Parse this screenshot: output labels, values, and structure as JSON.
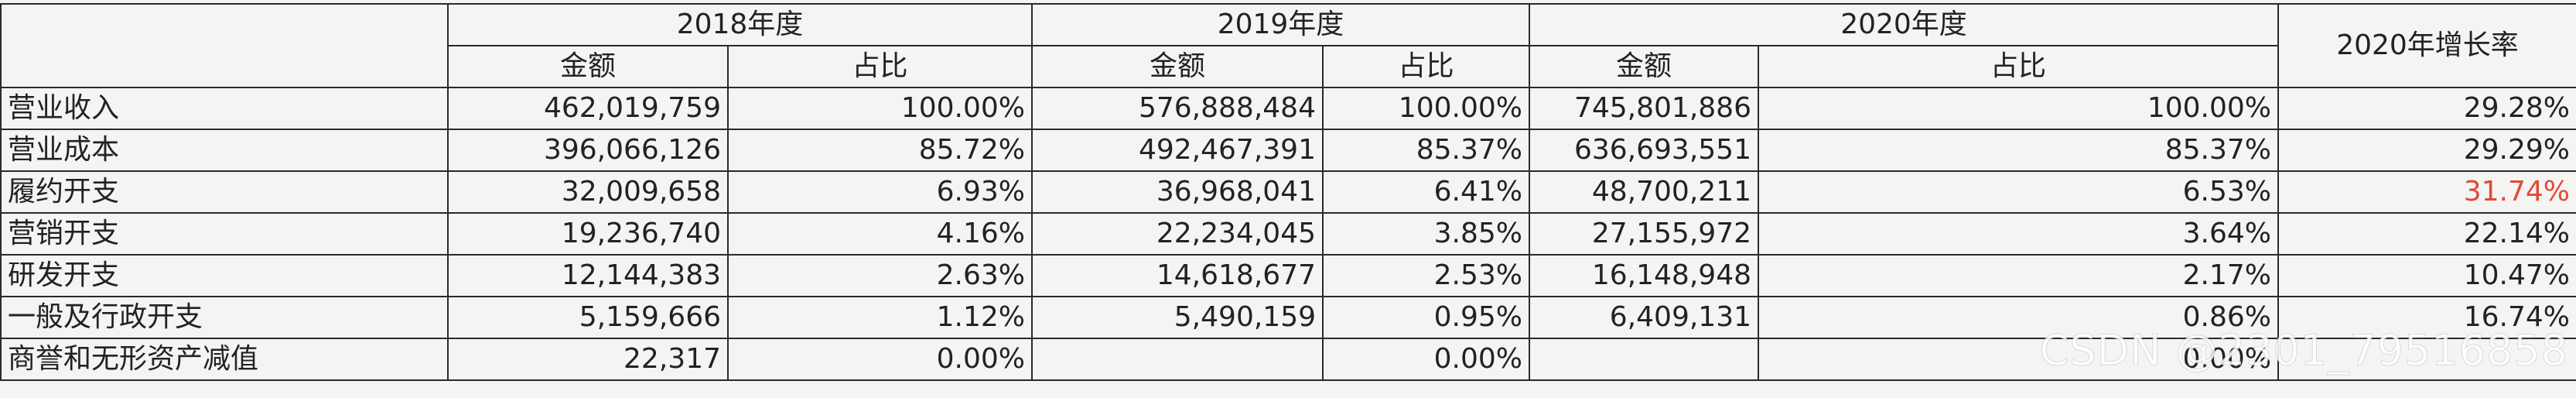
{
  "header": {
    "years": [
      "2018年度",
      "2019年度",
      "2020年度"
    ],
    "growth": "2020年增长率",
    "amount": "金额",
    "ratio": "占比"
  },
  "rows": [
    {
      "label": "营业收入",
      "a2018": "462,019,759",
      "r2018": "100.00%",
      "a2019": "576,888,484",
      "r2019": "100.00%",
      "a2020": "745,801,886",
      "r2020": "100.00%",
      "growth": "29.28%"
    },
    {
      "label": "营业成本",
      "a2018": "396,066,126",
      "r2018": "85.72%",
      "a2019": "492,467,391",
      "r2019": "85.37%",
      "a2020": "636,693,551",
      "r2020": "85.37%",
      "growth": "29.29%"
    },
    {
      "label": "履约开支",
      "a2018": "32,009,658",
      "r2018": "6.93%",
      "a2019": "36,968,041",
      "r2019": "6.41%",
      "a2020": "48,700,211",
      "r2020": "6.53%",
      "growth": "31.74%"
    },
    {
      "label": "营销开支",
      "a2018": "19,236,740",
      "r2018": "4.16%",
      "a2019": "22,234,045",
      "r2019": "3.85%",
      "a2020": "27,155,972",
      "r2020": "3.64%",
      "growth": "22.14%"
    },
    {
      "label": "研发开支",
      "a2018": "12,144,383",
      "r2018": "2.63%",
      "a2019": "14,618,677",
      "r2019": "2.53%",
      "a2020": "16,148,948",
      "r2020": "2.17%",
      "growth": "10.47%"
    },
    {
      "label": "一般及行政开支",
      "a2018": "5,159,666",
      "r2018": "1.12%",
      "a2019": "5,490,159",
      "r2019": "0.95%",
      "a2020": "6,409,131",
      "r2020": "0.86%",
      "growth": "16.74%"
    },
    {
      "label": "商誉和无形资产减值",
      "a2018": "22,317",
      "r2018": "0.00%",
      "a2019": "",
      "r2019": "0.00%",
      "a2020": "",
      "r2020": "0.00%",
      "growth": ""
    }
  ],
  "highlight_color": "#e04a3a",
  "watermark": "CSDN @2301_79516858"
}
